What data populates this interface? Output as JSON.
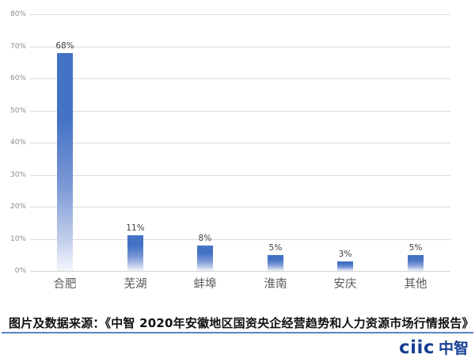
{
  "chart_data": {
    "type": "bar",
    "title": "",
    "xlabel": "",
    "ylabel": "",
    "categories": [
      "合肥",
      "芜湖",
      "蚌埠",
      "淮南",
      "安庆",
      "其他"
    ],
    "values": [
      68,
      11,
      8,
      5,
      3,
      5
    ],
    "value_labels": [
      "68%",
      "11%",
      "8%",
      "5%",
      "3%",
      "5%"
    ],
    "ylim": [
      0,
      80
    ],
    "ytick_labels": [
      "0%",
      "10%",
      "20%",
      "30%",
      "40%",
      "50%",
      "60%",
      "70%",
      "80%"
    ],
    "grid": true,
    "legend": "none",
    "bar_color": "#4472C4"
  },
  "source": {
    "text": "图片及数据来源：《中智 2020年安徽地区国资央企经营趋势和人力资源市场行情报告》"
  },
  "logo": {
    "latin": "ciic",
    "cjk": "中智"
  },
  "colors": {
    "bar_blue": "#4472C4",
    "rule_blue": "#5b82c8",
    "logo_blue": "#163F94",
    "gridline": "#dcdcdc",
    "axis_text": "#8c8c8c",
    "category_text": "#595959",
    "value_text": "#3f3f3f"
  }
}
